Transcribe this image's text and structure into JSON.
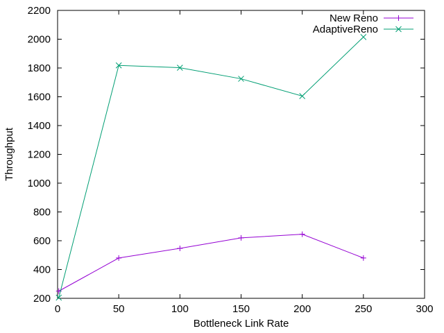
{
  "chart_data": {
    "type": "line",
    "title": "",
    "xlabel": "Bottleneck Link Rate",
    "ylabel": "Throughput",
    "xlim": [
      0,
      300
    ],
    "ylim": [
      200,
      2200
    ],
    "xticks": [
      0,
      50,
      100,
      150,
      200,
      250,
      300
    ],
    "yticks": [
      200,
      400,
      600,
      800,
      1000,
      1200,
      1400,
      1600,
      1800,
      2000,
      2200
    ],
    "grid": false,
    "legend": "top-right",
    "series": [
      {
        "name": "New Reno",
        "color": "#9400d3",
        "marker": "plus",
        "x": [
          1,
          50,
          100,
          150,
          200,
          250
        ],
        "y": [
          250,
          480,
          547,
          620,
          645,
          480
        ]
      },
      {
        "name": "AdaptiveReno",
        "color": "#009e73",
        "marker": "cross",
        "x": [
          1,
          50,
          100,
          150,
          200,
          250
        ],
        "y": [
          205,
          1818,
          1802,
          1725,
          1605,
          2015
        ]
      }
    ]
  }
}
